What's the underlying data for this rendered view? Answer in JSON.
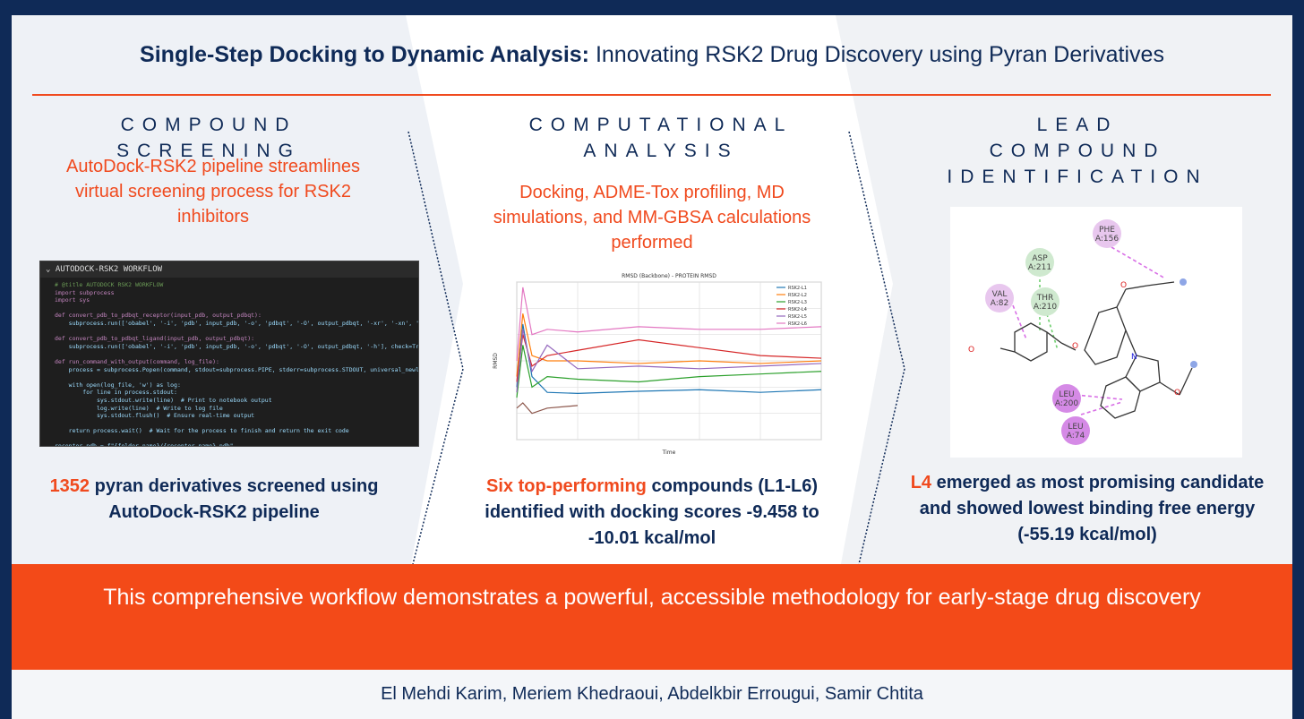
{
  "title": {
    "bold": "Single-Step Docking to Dynamic Analysis:",
    "rest": " Innovating RSK2 Drug Discovery using Pyran Derivatives"
  },
  "columns": [
    {
      "heading": "Compound Screening",
      "subtitle": "AutoDock-RSK2 pipeline streamlines virtual screening process for RSK2 inhibitors",
      "result_highlight": "1352",
      "result_rest": " pyran derivatives screened using AutoDock-RSK2 pipeline"
    },
    {
      "heading": "Computational Analysis",
      "subtitle": "Docking, ADME-Tox profiling, MD simulations, and MM-GBSA calculations performed",
      "result_highlight": "Six top-performing",
      "result_rest": " compounds (L1-L6) identified with docking scores -9.458 to -10.01 kcal/mol"
    },
    {
      "heading": "Lead Compound Identification",
      "subtitle": "",
      "result_highlight": "L4",
      "result_rest": " emerged as most promising candidate and showed lowest binding free energy (-55.19 kcal/mol)"
    }
  ],
  "code_panel": {
    "header": "AUTODOCK-RSK2 WORKFLOW",
    "lines": [
      "# @title AUTODOCK RSK2 WORKFLOW",
      "import subprocess",
      "import sys",
      "",
      "def convert_pdb_to_pdbqt_receptor(input_pdb, output_pdbqt):",
      "    subprocess.run(['obabel', '-i', 'pdb', input_pdb, '-o', 'pdbqt', '-O', output_pdbqt, '-xr', '-xn', '-xp'], check=True)",
      "",
      "def convert_pdb_to_pdbqt_ligand(input_pdb, output_pdbqt):",
      "    subprocess.run(['obabel', '-i', 'pdb', input_pdb, '-o', 'pdbqt', '-O', output_pdbqt, '-h'], check=True)",
      "",
      "def run_command_with_output(command, log_file):",
      "    process = subprocess.Popen(command, stdout=subprocess.PIPE, stderr=subprocess.STDOUT, universal_newlines=True)",
      "",
      "    with open(log_file, 'w') as log:",
      "        for line in process.stdout:",
      "            sys.stdout.write(line)  # Print to notebook output",
      "            log.write(line)  # Write to log file",
      "            sys.stdout.flush()  # Ensure real-time output",
      "",
      "    return process.wait()  # Wait for the process to finish and return the exit code",
      "",
      "receptor_pdb = f\"{folder_name}/{receptor_name}.pdb\"",
      "receptor_pdbqt = f\"{folder_name}/{receptor_name}.pdbqt\""
    ]
  },
  "chart_data": {
    "type": "line",
    "title": "RMSD (Backbone) - PROTEIN RMSD",
    "xlabel": "Time",
    "ylabel": "RMSD",
    "xlim": [
      0,
      100
    ],
    "ylim": [
      0,
      3.0
    ],
    "series": [
      {
        "name": "RSK2-L1",
        "color": "#1f77b4",
        "x": [
          0,
          2,
          5,
          10,
          20,
          40,
          60,
          80,
          100
        ],
        "y": [
          1.0,
          2.2,
          1.2,
          0.9,
          0.88,
          0.92,
          0.95,
          0.9,
          0.95
        ]
      },
      {
        "name": "RSK2-L2",
        "color": "#ff7f0e",
        "x": [
          0,
          2,
          5,
          10,
          20,
          40,
          60,
          80,
          100
        ],
        "y": [
          1.2,
          2.4,
          1.6,
          1.5,
          1.5,
          1.45,
          1.5,
          1.45,
          1.5
        ]
      },
      {
        "name": "RSK2-L3",
        "color": "#2ca02c",
        "x": [
          0,
          2,
          5,
          10,
          20,
          40,
          60,
          80,
          100
        ],
        "y": [
          0.8,
          1.8,
          1.0,
          1.2,
          1.15,
          1.1,
          1.2,
          1.25,
          1.3
        ]
      },
      {
        "name": "RSK2-L4",
        "color": "#d62728",
        "x": [
          0,
          2,
          5,
          10,
          20,
          40,
          60,
          80,
          100
        ],
        "y": [
          1.1,
          2.0,
          1.4,
          1.6,
          1.7,
          1.9,
          1.75,
          1.6,
          1.55
        ]
      },
      {
        "name": "RSK2-L5",
        "color": "#9467bd",
        "x": [
          0,
          2,
          5,
          10,
          20,
          40,
          60,
          80,
          100
        ],
        "y": [
          0.9,
          2.1,
          1.3,
          1.8,
          1.35,
          1.4,
          1.35,
          1.4,
          1.45
        ]
      },
      {
        "name": "RSK2-L6",
        "color": "#e377c2",
        "x": [
          0,
          2,
          5,
          10,
          20,
          40,
          60,
          80,
          100
        ],
        "y": [
          1.5,
          2.9,
          2.0,
          2.1,
          2.05,
          2.15,
          2.1,
          2.1,
          2.15
        ]
      },
      {
        "name": "",
        "color": "#8c564b",
        "x": [
          0,
          2,
          5,
          10,
          20
        ],
        "y": [
          0.6,
          0.7,
          0.5,
          0.6,
          0.65
        ]
      }
    ]
  },
  "residues": [
    {
      "label": "PHE\nA:156",
      "color": "#e8c7ee"
    },
    {
      "label": "ASP\nA:211",
      "color": "#cfe9cf"
    },
    {
      "label": "VAL\nA:82",
      "color": "#e8c7ee"
    },
    {
      "label": "THR\nA:210",
      "color": "#cfe9cf"
    },
    {
      "label": "LEU\nA:200",
      "color": "#d58ae6"
    },
    {
      "label": "LEU\nA:74",
      "color": "#d58ae6"
    }
  ],
  "banner": "This comprehensive workflow demonstrates a powerful, accessible methodology for early-stage drug discovery",
  "authors": "El Mehdi Karim, Meriem Khedraoui, Abdelkbir Errougui, Samir Chtita",
  "colors": {
    "navy": "#0f2a57",
    "accent": "#f04a1e",
    "banner": "#f34a18"
  }
}
